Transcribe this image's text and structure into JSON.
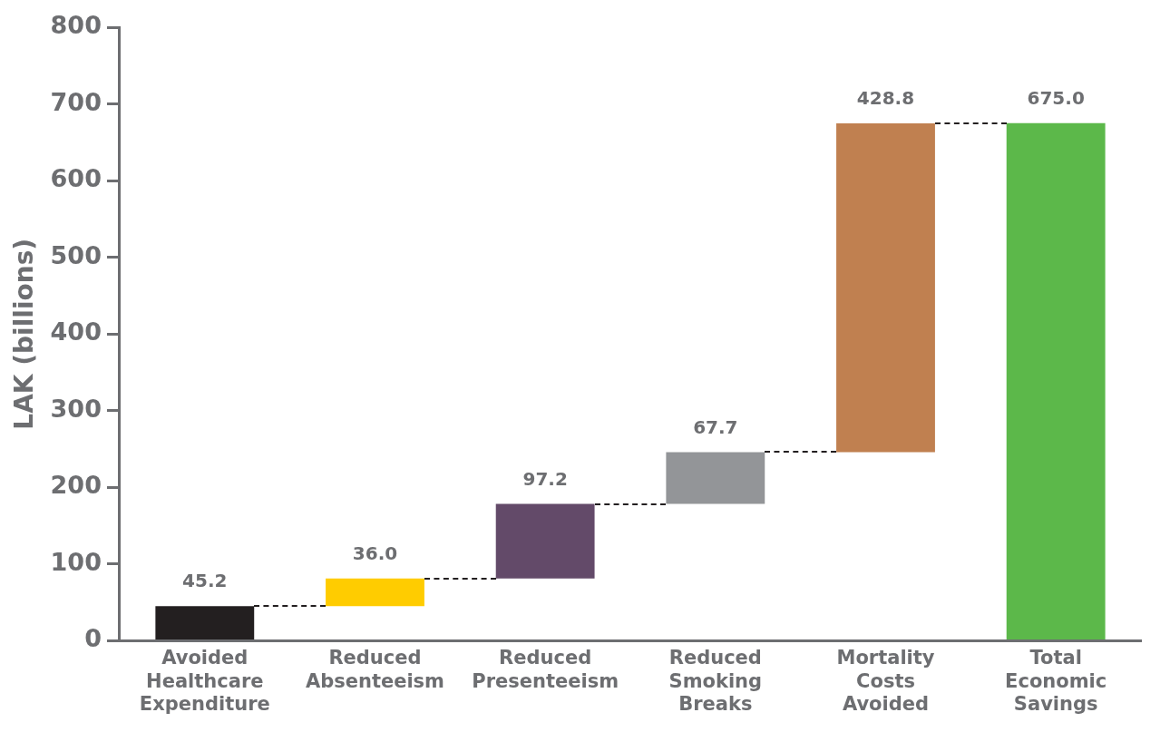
{
  "chart_data": {
    "type": "bar",
    "ylabel": "LAK (billions)",
    "categories": [
      "Avoided Healthcare Expenditure",
      "Reduced Absenteeism",
      "Reduced Presenteeism",
      "Reduced Smoking Breaks",
      "Mortality Costs Avoided",
      "Total Economic Savings"
    ],
    "values": [
      45.2,
      36.0,
      97.2,
      67.7,
      428.8,
      675.0
    ],
    "base": [
      0,
      45.2,
      81.2,
      178.4,
      246.1,
      0
    ],
    "colors": [
      "#231f20",
      "#ffcc00",
      "#634a69",
      "#939598",
      "#c08050",
      "#5cb84a"
    ],
    "value_labels": [
      "45.2",
      "36.0",
      "97.2",
      "67.7",
      "428.8",
      "675.0"
    ],
    "ylim": [
      0,
      800
    ],
    "yticks": [
      0,
      100,
      200,
      300,
      400,
      500,
      600,
      700,
      800
    ],
    "grid": false,
    "legend": false
  }
}
